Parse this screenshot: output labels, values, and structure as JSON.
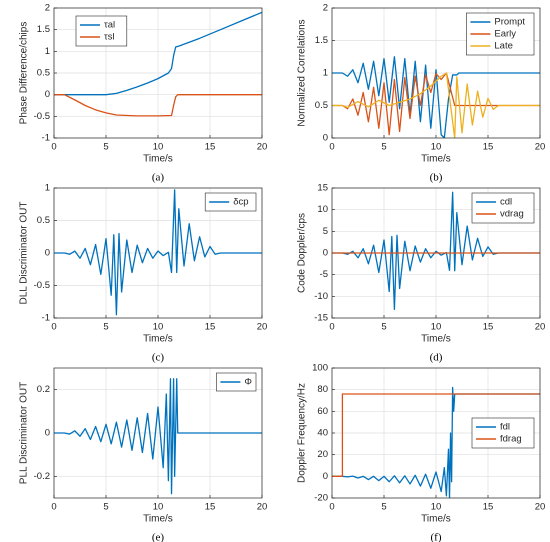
{
  "chart_data": [
    {
      "type": "line",
      "label": "(a)",
      "xlabel": "Time/s",
      "ylabel": "Phase Difference/chips",
      "xlim": [
        0,
        20
      ],
      "xticks": [
        0,
        5,
        10,
        15,
        20
      ],
      "ylim": [
        -1,
        2
      ],
      "yticks": [
        -1,
        -0.5,
        0,
        0.5,
        1,
        1.5,
        2
      ],
      "grid": true,
      "legend": "upper left",
      "series": [
        {
          "name": "τal",
          "color": "#0072BD",
          "x": [
            0,
            5,
            6,
            7,
            8,
            9,
            10,
            11,
            11.3,
            11.5,
            11.7,
            12,
            14,
            16,
            18,
            20
          ],
          "values": [
            0,
            0,
            0.03,
            0.1,
            0.18,
            0.27,
            0.37,
            0.5,
            0.6,
            0.9,
            1.1,
            1.12,
            1.3,
            1.5,
            1.7,
            1.9
          ]
        },
        {
          "name": "τsl",
          "color": "#D95319",
          "x": [
            0,
            1,
            2,
            3,
            4,
            5,
            6,
            8,
            10,
            11.3,
            11.5,
            11.7,
            11.9,
            20
          ],
          "values": [
            0,
            0,
            -0.12,
            -0.25,
            -0.35,
            -0.42,
            -0.47,
            -0.49,
            -0.49,
            -0.48,
            -0.25,
            -0.05,
            0,
            0
          ]
        }
      ]
    },
    {
      "type": "line",
      "label": "(b)",
      "xlabel": "Time/s",
      "ylabel": "Normalized Correlations",
      "xlim": [
        0,
        20
      ],
      "xticks": [
        0,
        5,
        10,
        15,
        20
      ],
      "ylim": [
        0,
        2
      ],
      "yticks": [
        0,
        0.5,
        1,
        1.5,
        2
      ],
      "grid": true,
      "legend": "upper right",
      "series": [
        {
          "name": "Prompt",
          "color": "#0072BD",
          "x": [
            0,
            1,
            1.5,
            2,
            2.5,
            3,
            3.5,
            4,
            4.5,
            5,
            5.5,
            6,
            6.5,
            7,
            7.5,
            8,
            8.5,
            9,
            9.5,
            10,
            10.5,
            10.8,
            11.2,
            11.6,
            12,
            12.2,
            20
          ],
          "values": [
            1,
            1,
            0.95,
            1.05,
            0.85,
            1.15,
            0.75,
            1.18,
            0.65,
            1.22,
            0.55,
            1.25,
            0.45,
            1.22,
            0.35,
            1.18,
            0.25,
            1.12,
            0.15,
            1.05,
            0.05,
            0,
            0.6,
            0.97,
            0.97,
            1,
            1
          ]
        },
        {
          "name": "Early",
          "color": "#D95319",
          "x": [
            0,
            1,
            1.5,
            2,
            2.5,
            3,
            3.5,
            4,
            4.5,
            5,
            5.5,
            6,
            6.5,
            7,
            7.5,
            8,
            8.5,
            9,
            9.5,
            10,
            10.5,
            11,
            11.8,
            20
          ],
          "values": [
            0.5,
            0.5,
            0.45,
            0.6,
            0.35,
            0.7,
            0.25,
            0.78,
            0.15,
            0.85,
            0.05,
            0.9,
            0.1,
            0.93,
            0.3,
            0.95,
            0.5,
            0.97,
            0.7,
            0.99,
            0.9,
            1,
            0.5,
            0.5
          ]
        },
        {
          "name": "Late",
          "color": "#EDB120",
          "x": [
            0,
            1,
            1.5,
            2.5,
            3.5,
            4.5,
            5.5,
            6.5,
            7.5,
            8.5,
            9.5,
            10.5,
            11,
            11.8,
            12,
            12.5,
            13,
            13.5,
            14,
            14.5,
            15,
            15.5,
            16,
            20
          ],
          "values": [
            0.5,
            0.5,
            0.47,
            0.56,
            0.48,
            0.58,
            0.5,
            0.55,
            0.6,
            0.68,
            0.8,
            0.95,
            1,
            0,
            0.94,
            0.08,
            0.83,
            0.2,
            0.72,
            0.32,
            0.61,
            0.44,
            0.5,
            0.5
          ]
        }
      ]
    },
    {
      "type": "line",
      "label": "(c)",
      "xlabel": "Time/s",
      "ylabel": "DLL Discriminator OUT",
      "xlim": [
        0,
        20
      ],
      "xticks": [
        0,
        5,
        10,
        15,
        20
      ],
      "ylim": [
        -1,
        1
      ],
      "yticks": [
        -1,
        -0.5,
        0,
        0.5,
        1
      ],
      "grid": true,
      "legend": "upper right",
      "series": [
        {
          "name": "δcp",
          "color": "#0072BD",
          "x": [
            0,
            1,
            1.5,
            2,
            2.5,
            3,
            3.5,
            4,
            4.5,
            5,
            5.5,
            5.75,
            6,
            6.25,
            6.5,
            7,
            7.5,
            8,
            8.5,
            9,
            9.5,
            10,
            10.5,
            11,
            11.3,
            11.6,
            11.8,
            12,
            12.5,
            13,
            13.5,
            14,
            14.5,
            15,
            15.5,
            16,
            20
          ],
          "values": [
            0,
            0,
            -0.02,
            0.03,
            -0.08,
            0.07,
            -0.18,
            0.13,
            -0.33,
            0.22,
            -0.65,
            0.28,
            -0.95,
            0.3,
            -0.6,
            0.2,
            -0.3,
            0.12,
            -0.15,
            0.07,
            -0.08,
            0.03,
            -0.04,
            0.01,
            -0.3,
            0.97,
            -0.3,
            0.68,
            -0.2,
            0.45,
            -0.12,
            0.25,
            -0.06,
            0.1,
            -0.02,
            0,
            0
          ]
        }
      ]
    },
    {
      "type": "line",
      "label": "(d)",
      "xlabel": "Time/s",
      "ylabel": "Code Doppler/cps",
      "xlim": [
        0,
        20
      ],
      "xticks": [
        0,
        5,
        10,
        15,
        20
      ],
      "ylim": [
        -15,
        15
      ],
      "yticks": [
        -15,
        -10,
        -5,
        0,
        5,
        10,
        15
      ],
      "grid": true,
      "legend": "upper right",
      "series": [
        {
          "name": "cdl",
          "color": "#0072BD",
          "x": [
            0,
            1,
            1.5,
            2,
            2.5,
            3,
            3.5,
            4,
            4.5,
            5,
            5.5,
            5.75,
            6,
            6.25,
            6.5,
            7,
            7.5,
            8,
            8.5,
            9,
            9.5,
            10,
            10.5,
            11,
            11.3,
            11.6,
            11.8,
            12,
            12.5,
            13,
            13.5,
            14,
            14.5,
            15,
            15.5,
            16,
            20
          ],
          "values": [
            0,
            0,
            -0.3,
            0.4,
            -1.1,
            1,
            -2.5,
            1.8,
            -4.5,
            3,
            -8.9,
            3.8,
            -13,
            4.1,
            -8.2,
            2.7,
            -4.1,
            1.6,
            -2.1,
            1,
            -1.1,
            0.4,
            -0.5,
            0.1,
            -4,
            14,
            -4.1,
            9.3,
            -2.7,
            6.2,
            -1.6,
            3.4,
            -0.8,
            1.4,
            -0.3,
            0,
            0
          ]
        },
        {
          "name": "vdrag",
          "color": "#D95319",
          "x": [
            0,
            20
          ],
          "values": [
            0,
            0
          ]
        }
      ]
    },
    {
      "type": "line",
      "label": "(e)",
      "xlabel": "Time/s",
      "ylabel": "PLL Discriminator OUT",
      "xlim": [
        0,
        20
      ],
      "xticks": [
        0,
        5,
        10,
        15,
        20
      ],
      "ylim": [
        -0.3,
        0.3
      ],
      "yticks": [
        -0.2,
        0,
        0.2
      ],
      "grid": true,
      "legend": "upper right",
      "series": [
        {
          "name": "Φ",
          "color": "#0072BD",
          "x": [
            0,
            1,
            1.5,
            2,
            2.5,
            3,
            3.5,
            4,
            4.5,
            5,
            5.5,
            6,
            6.5,
            7,
            7.5,
            8,
            8.5,
            9,
            9.5,
            10,
            10.5,
            10.8,
            11,
            11.2,
            11.3,
            11.5,
            11.6,
            11.8,
            11.9,
            20
          ],
          "values": [
            0,
            0,
            -0.005,
            0.01,
            -0.015,
            0.02,
            -0.03,
            0.03,
            -0.04,
            0.04,
            -0.05,
            0.05,
            -0.065,
            0.06,
            -0.08,
            0.07,
            -0.09,
            0.09,
            -0.12,
            0.12,
            -0.16,
            0.18,
            -0.22,
            0.25,
            -0.28,
            0.25,
            -0.2,
            0.25,
            0,
            0
          ]
        }
      ]
    },
    {
      "type": "line",
      "label": "(f)",
      "xlabel": "Time/s",
      "ylabel": "Doppler Frequency/Hz",
      "xlim": [
        0,
        20
      ],
      "xticks": [
        0,
        5,
        10,
        15,
        20
      ],
      "ylim": [
        -20,
        100
      ],
      "yticks": [
        -20,
        0,
        20,
        40,
        60,
        80,
        100
      ],
      "grid": true,
      "legend": "right",
      "series": [
        {
          "name": "fdl",
          "color": "#0072BD",
          "x": [
            0,
            1,
            1.5,
            2,
            2.5,
            3,
            3.5,
            4,
            4.5,
            5,
            5.5,
            6,
            6.5,
            7,
            7.5,
            8,
            8.5,
            9,
            9.5,
            10,
            10.5,
            10.8,
            11,
            11.2,
            11.3,
            11.4,
            11.5,
            11.6,
            11.7,
            11.8,
            20
          ],
          "values": [
            0,
            0,
            -0.5,
            0.2,
            -1.5,
            0,
            -3,
            0,
            -4,
            0,
            -5,
            0.5,
            -6,
            0.5,
            -7,
            1,
            -9,
            2,
            -11,
            4,
            -14,
            8,
            -18,
            25,
            -20,
            40,
            -5,
            82,
            60,
            76,
            76
          ]
        },
        {
          "name": "fdrag",
          "color": "#D95319",
          "x": [
            0,
            1,
            1,
            20
          ],
          "values": [
            0,
            0,
            76,
            76
          ]
        }
      ]
    }
  ]
}
